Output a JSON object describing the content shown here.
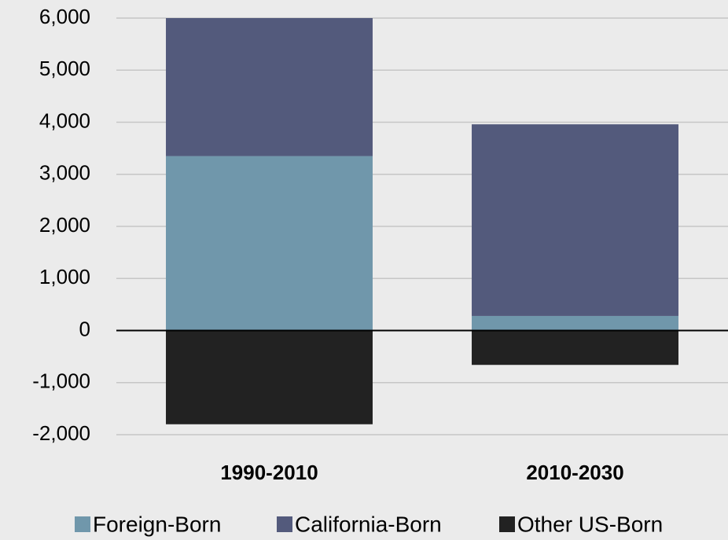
{
  "chart_data": {
    "type": "stacked_bar",
    "categories": [
      "1990-2010",
      "2010-2030"
    ],
    "series": [
      {
        "name": "Foreign-Born",
        "color": "#7097ab",
        "values": [
          3350,
          280
        ]
      },
      {
        "name": "California-Born",
        "color": "#535a7c",
        "values": [
          2650,
          3680
        ]
      },
      {
        "name": "Other US-Born",
        "color": "#222222",
        "values": [
          -1800,
          -660
        ]
      }
    ],
    "ylim": [
      -2000,
      6000
    ],
    "yticks": [
      {
        "value": -2000,
        "label": "-2,000"
      },
      {
        "value": -1000,
        "label": "-1,000"
      },
      0,
      {
        "value": 1000,
        "label": "1,000"
      },
      {
        "value": 2000,
        "label": "2,000"
      },
      {
        "value": 3000,
        "label": "3,000"
      },
      {
        "value": 4000,
        "label": "4,000"
      },
      {
        "value": 5000,
        "label": "5,000"
      },
      {
        "value": 6000,
        "label": "6,000"
      }
    ],
    "grid": true,
    "legend": "bottom"
  }
}
